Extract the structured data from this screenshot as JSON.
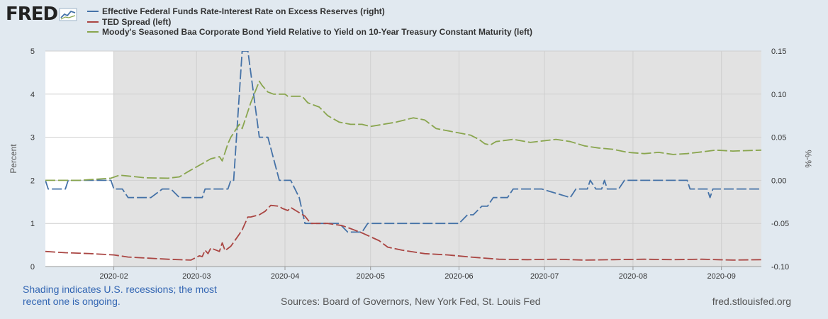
{
  "header": {
    "logo_text": "FRED",
    "logo_icon": "line-chart-icon"
  },
  "chart_data": {
    "type": "line",
    "ylabel": "Percent",
    "y2label": "%-%",
    "ylim": [
      0,
      5
    ],
    "y2lim": [
      -0.1,
      0.15
    ],
    "yticks": [
      "0",
      "1",
      "2",
      "3",
      "4",
      "5"
    ],
    "y2ticks": [
      "-0.10",
      "-0.05",
      "0.00",
      "0.05",
      "0.10",
      "0.15"
    ],
    "xlim": [
      "2020-01-08",
      "2020-09-15"
    ],
    "xticks": [
      {
        "date": "2020-02-01",
        "label": "2020-02"
      },
      {
        "date": "2020-03-01",
        "label": "2020-03"
      },
      {
        "date": "2020-04-01",
        "label": "2020-04"
      },
      {
        "date": "2020-05-01",
        "label": "2020-05"
      },
      {
        "date": "2020-06-01",
        "label": "2020-06"
      },
      {
        "date": "2020-07-01",
        "label": "2020-07"
      },
      {
        "date": "2020-08-01",
        "label": "2020-08"
      },
      {
        "date": "2020-09-01",
        "label": "2020-09"
      }
    ],
    "recession_shading": {
      "start": "2020-02-01",
      "end": "2020-09-15"
    },
    "grid": true,
    "series": [
      {
        "name": "Effective Federal Funds Rate-Interest Rate on Excess Reserves (right)",
        "axis": "right",
        "color": "#4572a7",
        "points": [
          [
            "2020-01-08",
            0.0
          ],
          [
            "2020-01-09",
            -0.01
          ],
          [
            "2020-01-13",
            -0.01
          ],
          [
            "2020-01-14",
            -0.01
          ],
          [
            "2020-01-15",
            -0.01
          ],
          [
            "2020-01-16",
            0.0
          ],
          [
            "2020-01-21",
            0.0
          ],
          [
            "2020-01-27",
            0.0
          ],
          [
            "2020-01-31",
            0.0
          ],
          [
            "2020-02-01",
            -0.01
          ],
          [
            "2020-02-04",
            -0.01
          ],
          [
            "2020-02-06",
            -0.02
          ],
          [
            "2020-02-14",
            -0.02
          ],
          [
            "2020-02-18",
            -0.01
          ],
          [
            "2020-02-21",
            -0.01
          ],
          [
            "2020-02-24",
            -0.02
          ],
          [
            "2020-03-03",
            -0.02
          ],
          [
            "2020-03-04",
            -0.01
          ],
          [
            "2020-03-12",
            -0.01
          ],
          [
            "2020-03-13",
            0.0
          ],
          [
            "2020-03-14",
            0.0
          ],
          [
            "2020-03-17",
            0.15
          ],
          [
            "2020-03-19",
            0.15
          ],
          [
            "2020-03-23",
            0.05
          ],
          [
            "2020-03-26",
            0.05
          ],
          [
            "2020-03-30",
            0.0
          ],
          [
            "2020-04-03",
            0.0
          ],
          [
            "2020-04-06",
            -0.02
          ],
          [
            "2020-04-08",
            -0.05
          ],
          [
            "2020-04-20",
            -0.05
          ],
          [
            "2020-04-23",
            -0.06
          ],
          [
            "2020-04-28",
            -0.06
          ],
          [
            "2020-04-30",
            -0.05
          ],
          [
            "2020-05-29",
            -0.05
          ],
          [
            "2020-06-01",
            -0.05
          ],
          [
            "2020-06-04",
            -0.04
          ],
          [
            "2020-06-06",
            -0.04
          ],
          [
            "2020-06-09",
            -0.03
          ],
          [
            "2020-06-11",
            -0.03
          ],
          [
            "2020-06-13",
            -0.02
          ],
          [
            "2020-06-18",
            -0.02
          ],
          [
            "2020-06-20",
            -0.01
          ],
          [
            "2020-06-30",
            -0.01
          ],
          [
            "2020-07-10",
            -0.02
          ],
          [
            "2020-07-12",
            -0.01
          ],
          [
            "2020-07-16",
            -0.01
          ],
          [
            "2020-07-17",
            0.0
          ],
          [
            "2020-07-19",
            -0.01
          ],
          [
            "2020-07-21",
            -0.01
          ],
          [
            "2020-07-22",
            0.0
          ],
          [
            "2020-07-23",
            -0.01
          ],
          [
            "2020-07-27",
            -0.01
          ],
          [
            "2020-07-29",
            0.0
          ],
          [
            "2020-08-20",
            0.0
          ],
          [
            "2020-08-21",
            -0.01
          ],
          [
            "2020-08-27",
            -0.01
          ],
          [
            "2020-08-28",
            -0.02
          ],
          [
            "2020-08-29",
            -0.01
          ],
          [
            "2020-09-15",
            -0.01
          ]
        ]
      },
      {
        "name": "TED Spread (left)",
        "axis": "left",
        "color": "#aa4643",
        "points": [
          [
            "2020-01-08",
            0.35
          ],
          [
            "2020-01-15",
            0.32
          ],
          [
            "2020-01-24",
            0.3
          ],
          [
            "2020-02-01",
            0.27
          ],
          [
            "2020-02-06",
            0.22
          ],
          [
            "2020-02-20",
            0.17
          ],
          [
            "2020-02-28",
            0.15
          ],
          [
            "2020-03-02",
            0.25
          ],
          [
            "2020-03-03",
            0.23
          ],
          [
            "2020-03-04",
            0.38
          ],
          [
            "2020-03-05",
            0.3
          ],
          [
            "2020-03-06",
            0.43
          ],
          [
            "2020-03-09",
            0.35
          ],
          [
            "2020-03-10",
            0.55
          ],
          [
            "2020-03-11",
            0.37
          ],
          [
            "2020-03-12",
            0.42
          ],
          [
            "2020-03-13",
            0.47
          ],
          [
            "2020-03-16",
            0.75
          ],
          [
            "2020-03-17",
            0.85
          ],
          [
            "2020-03-19",
            1.15
          ],
          [
            "2020-03-20",
            1.15
          ],
          [
            "2020-03-23",
            1.2
          ],
          [
            "2020-03-25",
            1.28
          ],
          [
            "2020-03-27",
            1.42
          ],
          [
            "2020-03-30",
            1.4
          ],
          [
            "2020-03-31",
            1.35
          ],
          [
            "2020-04-02",
            1.3
          ],
          [
            "2020-04-03",
            1.37
          ],
          [
            "2020-04-06",
            1.25
          ],
          [
            "2020-04-08",
            1.17
          ],
          [
            "2020-04-10",
            1.0
          ],
          [
            "2020-04-16",
            1.0
          ],
          [
            "2020-04-21",
            0.95
          ],
          [
            "2020-04-24",
            0.88
          ],
          [
            "2020-04-28",
            0.78
          ],
          [
            "2020-05-04",
            0.6
          ],
          [
            "2020-05-07",
            0.45
          ],
          [
            "2020-05-12",
            0.38
          ],
          [
            "2020-05-20",
            0.3
          ],
          [
            "2020-05-28",
            0.27
          ],
          [
            "2020-06-05",
            0.22
          ],
          [
            "2020-06-15",
            0.17
          ],
          [
            "2020-06-25",
            0.16
          ],
          [
            "2020-07-05",
            0.17
          ],
          [
            "2020-07-15",
            0.15
          ],
          [
            "2020-07-25",
            0.16
          ],
          [
            "2020-08-05",
            0.17
          ],
          [
            "2020-08-15",
            0.16
          ],
          [
            "2020-08-25",
            0.17
          ],
          [
            "2020-09-05",
            0.15
          ],
          [
            "2020-09-15",
            0.16
          ]
        ]
      },
      {
        "name": "Moody's Seasoned Baa Corporate Bond Yield Relative to Yield on 10-Year Treasury Constant Maturity (left)",
        "axis": "left",
        "color": "#89a54e",
        "points": [
          [
            "2020-01-08",
            2.0
          ],
          [
            "2020-01-20",
            2.0
          ],
          [
            "2020-01-31",
            2.05
          ],
          [
            "2020-02-03",
            2.12
          ],
          [
            "2020-02-06",
            2.1
          ],
          [
            "2020-02-12",
            2.06
          ],
          [
            "2020-02-20",
            2.05
          ],
          [
            "2020-02-24",
            2.08
          ],
          [
            "2020-02-27",
            2.2
          ],
          [
            "2020-03-02",
            2.35
          ],
          [
            "2020-03-06",
            2.5
          ],
          [
            "2020-03-09",
            2.55
          ],
          [
            "2020-03-10",
            2.45
          ],
          [
            "2020-03-12",
            2.85
          ],
          [
            "2020-03-13",
            3.0
          ],
          [
            "2020-03-16",
            3.3
          ],
          [
            "2020-03-17",
            3.2
          ],
          [
            "2020-03-19",
            3.6
          ],
          [
            "2020-03-20",
            3.8
          ],
          [
            "2020-03-23",
            4.3
          ],
          [
            "2020-03-24",
            4.2
          ],
          [
            "2020-03-26",
            4.05
          ],
          [
            "2020-03-28",
            4.0
          ],
          [
            "2020-04-01",
            4.0
          ],
          [
            "2020-04-02",
            3.95
          ],
          [
            "2020-04-07",
            3.95
          ],
          [
            "2020-04-09",
            3.8
          ],
          [
            "2020-04-13",
            3.7
          ],
          [
            "2020-04-16",
            3.5
          ],
          [
            "2020-04-20",
            3.35
          ],
          [
            "2020-04-24",
            3.3
          ],
          [
            "2020-04-28",
            3.3
          ],
          [
            "2020-05-01",
            3.25
          ],
          [
            "2020-05-10",
            3.35
          ],
          [
            "2020-05-16",
            3.45
          ],
          [
            "2020-05-20",
            3.4
          ],
          [
            "2020-05-24",
            3.2
          ],
          [
            "2020-06-01",
            3.1
          ],
          [
            "2020-06-05",
            3.05
          ],
          [
            "2020-06-08",
            2.95
          ],
          [
            "2020-06-10",
            2.85
          ],
          [
            "2020-06-12",
            2.82
          ],
          [
            "2020-06-14",
            2.9
          ],
          [
            "2020-06-20",
            2.95
          ],
          [
            "2020-06-26",
            2.88
          ],
          [
            "2020-07-01",
            2.92
          ],
          [
            "2020-07-05",
            2.95
          ],
          [
            "2020-07-10",
            2.9
          ],
          [
            "2020-07-15",
            2.8
          ],
          [
            "2020-07-20",
            2.75
          ],
          [
            "2020-07-25",
            2.72
          ],
          [
            "2020-07-30",
            2.65
          ],
          [
            "2020-08-05",
            2.62
          ],
          [
            "2020-08-10",
            2.65
          ],
          [
            "2020-08-15",
            2.6
          ],
          [
            "2020-08-20",
            2.62
          ],
          [
            "2020-08-25",
            2.66
          ],
          [
            "2020-08-30",
            2.7
          ],
          [
            "2020-09-05",
            2.68
          ],
          [
            "2020-09-15",
            2.7
          ]
        ]
      }
    ]
  },
  "footer": {
    "shading_note": "Shading indicates U.S. recessions; the most recent one is ongoing.",
    "sources": "Sources: Board of Governors, New York Fed, St. Louis Fed",
    "site": "fred.stlouisfed.org"
  }
}
